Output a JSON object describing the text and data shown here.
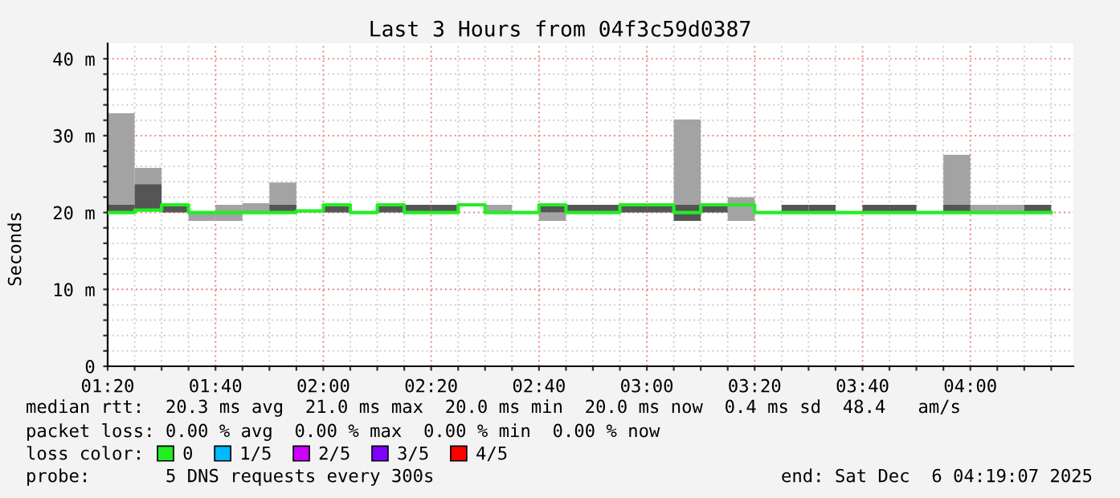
{
  "chart_data": {
    "type": "bar",
    "title": "Last 3 Hours from 04f3c59d0387",
    "ylabel": "Seconds",
    "x": [
      1.375,
      1.4583,
      1.5417,
      1.625,
      1.7083,
      1.7917,
      1.875,
      1.9583,
      2.0417,
      2.125,
      2.2083,
      2.2917,
      2.375,
      2.4583,
      2.5417,
      2.625,
      2.7083,
      2.7917,
      2.875,
      2.9583,
      3.0417,
      3.125,
      3.2083,
      3.2917,
      3.375,
      3.4583,
      3.5417,
      3.625,
      3.7083,
      3.7917,
      3.875,
      3.9583,
      4.0417,
      4.125,
      4.2083
    ],
    "series": [
      {
        "color": "#a3a3a3",
        "base": [
          20.0,
          23.7,
          null,
          18.9,
          18.9,
          20.0,
          20.0,
          null,
          null,
          null,
          null,
          null,
          null,
          null,
          20.0,
          null,
          18.9,
          null,
          null,
          null,
          null,
          18.9,
          null,
          18.9,
          null,
          null,
          null,
          null,
          null,
          null,
          null,
          20.0,
          20.0,
          20.0,
          null
        ],
        "values": [
          12.9,
          2.1,
          null,
          1.1,
          2.1,
          1.2,
          3.9,
          null,
          null,
          null,
          null,
          null,
          null,
          null,
          1.0,
          null,
          1.1,
          null,
          null,
          null,
          null,
          13.2,
          null,
          3.1,
          null,
          null,
          null,
          null,
          null,
          null,
          null,
          7.5,
          1.0,
          1.0,
          null
        ]
      },
      {
        "color": "#555555",
        "base": [
          20.0,
          20.3,
          20.0,
          null,
          null,
          null,
          20.0,
          null,
          20.0,
          null,
          20.0,
          20.0,
          20.0,
          null,
          null,
          null,
          20.0,
          20.0,
          20.0,
          20.0,
          20.0,
          18.9,
          20.0,
          null,
          null,
          20.0,
          20.0,
          null,
          20.0,
          20.0,
          null,
          20.0,
          null,
          null,
          20.0
        ],
        "values": [
          1.0,
          3.4,
          1.0,
          null,
          null,
          null,
          1.0,
          null,
          1.0,
          null,
          1.0,
          1.0,
          1.0,
          null,
          null,
          null,
          1.0,
          1.0,
          1.0,
          1.0,
          1.0,
          2.1,
          1.0,
          null,
          null,
          1.0,
          1.0,
          null,
          1.0,
          1.0,
          null,
          1.0,
          null,
          null,
          1.0
        ]
      },
      {
        "type": "step",
        "name": "0",
        "color": "#22ee22",
        "x": [
          1.3333,
          1.4167,
          1.5,
          1.5833,
          1.6667,
          1.75,
          1.8333,
          1.9167,
          2.0,
          2.0833,
          2.1667,
          2.25,
          2.3333,
          2.4167,
          2.5,
          2.5833,
          2.6667,
          2.75,
          2.8333,
          2.9167,
          3.0,
          3.0833,
          3.1667,
          3.25,
          3.3333,
          3.4167,
          3.5,
          3.5833,
          3.6667,
          3.75,
          3.8333,
          3.9167,
          4.0,
          4.0833,
          4.1667,
          4.25
        ],
        "values": [
          20.0,
          20.3,
          21.0,
          20.0,
          20.0,
          20.0,
          20.0,
          20.2,
          21.0,
          20.0,
          21.0,
          20.0,
          20.0,
          21.0,
          20.0,
          20.0,
          21.0,
          20.0,
          20.0,
          21.0,
          21.0,
          20.0,
          21.0,
          21.0,
          20.0,
          20.0,
          20.0,
          20.0,
          20.0,
          20.0,
          20.0,
          20.0,
          20.0,
          20.0,
          20.0,
          20.0
        ]
      },
      {
        "type": "step",
        "name": "1/5",
        "color": "#00b8ff",
        "values": [
          null,
          null,
          null,
          null,
          null,
          null,
          null,
          null,
          null,
          null,
          null,
          null,
          null,
          null,
          null,
          null,
          null,
          null,
          null,
          null,
          null,
          null,
          null,
          null,
          null,
          null,
          null,
          null,
          null,
          null,
          null,
          null,
          null,
          null,
          null
        ]
      },
      {
        "type": "step",
        "name": "2/5",
        "color": "#cc00ff",
        "values": [
          null,
          null,
          null,
          null,
          null,
          null,
          null,
          null,
          null,
          null,
          null,
          null,
          null,
          null,
          null,
          null,
          null,
          null,
          null,
          null,
          null,
          null,
          null,
          null,
          null,
          null,
          null,
          null,
          null,
          null,
          null,
          null,
          null,
          null,
          null
        ]
      },
      {
        "type": "step",
        "name": "3/5",
        "color": "#7f00ff",
        "values": [
          null,
          null,
          null,
          null,
          null,
          null,
          null,
          null,
          null,
          null,
          null,
          null,
          null,
          null,
          null,
          null,
          null,
          null,
          null,
          null,
          null,
          null,
          null,
          null,
          null,
          null,
          null,
          null,
          null,
          null,
          null,
          null,
          null,
          null,
          null
        ]
      },
      {
        "type": "step",
        "name": "4/5",
        "color": "#ff0000",
        "values": [
          null,
          null,
          null,
          null,
          null,
          null,
          null,
          null,
          null,
          null,
          null,
          null,
          null,
          null,
          null,
          null,
          null,
          null,
          null,
          null,
          null,
          null,
          null,
          null,
          null,
          null,
          null,
          null,
          null,
          null,
          null,
          null,
          null,
          null,
          null
        ]
      }
    ],
    "xlim": [
      1.3333,
      4.3186
    ],
    "xticks": [
      {
        "value": 1.3333,
        "label": "01:20"
      },
      {
        "value": 1.4167,
        "label": null
      },
      {
        "value": 1.5,
        "label": null
      },
      {
        "value": 1.5833,
        "label": null
      },
      {
        "value": 1.6667,
        "label": "01:40"
      },
      {
        "value": 1.75,
        "label": null
      },
      {
        "value": 1.8333,
        "label": null
      },
      {
        "value": 1.9167,
        "label": null
      },
      {
        "value": 2.0,
        "label": "02:00"
      },
      {
        "value": 2.0833,
        "label": null
      },
      {
        "value": 2.1667,
        "label": null
      },
      {
        "value": 2.25,
        "label": null
      },
      {
        "value": 2.3333,
        "label": "02:20"
      },
      {
        "value": 2.4167,
        "label": null
      },
      {
        "value": 2.5,
        "label": null
      },
      {
        "value": 2.5833,
        "label": null
      },
      {
        "value": 2.6667,
        "label": "02:40"
      },
      {
        "value": 2.75,
        "label": null
      },
      {
        "value": 2.8333,
        "label": null
      },
      {
        "value": 2.9167,
        "label": null
      },
      {
        "value": 3.0,
        "label": "03:00"
      },
      {
        "value": 3.0833,
        "label": null
      },
      {
        "value": 3.1667,
        "label": null
      },
      {
        "value": 3.25,
        "label": null
      },
      {
        "value": 3.3333,
        "label": "03:20"
      },
      {
        "value": 3.4167,
        "label": null
      },
      {
        "value": 3.5,
        "label": null
      },
      {
        "value": 3.5833,
        "label": null
      },
      {
        "value": 3.6667,
        "label": "03:40"
      },
      {
        "value": 3.75,
        "label": null
      },
      {
        "value": 3.8333,
        "label": null
      },
      {
        "value": 3.9167,
        "label": null
      },
      {
        "value": 4.0,
        "label": "04:00"
      },
      {
        "value": 4.0833,
        "label": null
      },
      {
        "value": 4.1667,
        "label": null
      },
      {
        "value": 4.25,
        "label": null
      }
    ],
    "ylim": [
      0,
      42
    ],
    "yticks": [
      0,
      {
        "value": 2,
        "label": null
      },
      {
        "value": 4,
        "label": null
      },
      {
        "value": 6,
        "label": null
      },
      {
        "value": 8,
        "label": null
      },
      {
        "value": 10,
        "label": "10 m"
      },
      {
        "value": 12,
        "label": null
      },
      {
        "value": 14,
        "label": null
      },
      {
        "value": 16,
        "label": null
      },
      {
        "value": 18,
        "label": null
      },
      {
        "value": 20,
        "label": "20 m"
      },
      {
        "value": 22,
        "label": null
      },
      {
        "value": 24,
        "label": null
      },
      {
        "value": 26,
        "label": null
      },
      {
        "value": 28,
        "label": null
      },
      {
        "value": 30,
        "label": "30 m"
      },
      {
        "value": 32,
        "label": null
      },
      {
        "value": 34,
        "label": null
      },
      {
        "value": 36,
        "label": null
      },
      {
        "value": 38,
        "label": null
      },
      {
        "value": 40,
        "label": "40 m"
      }
    ],
    "grid": true,
    "legend": "bottom",
    "annotations": [
      "median rtt:  20.3 ms avg  21.0 ms max  20.0 ms min  20.0 ms now  0.4 ms sd  48.4   am/s",
      "packet loss: 0.00 % avg  0.00 % max  0.00 % min  0.00 % now",
      "loss color:",
      "probe:       5 DNS requests every 300s",
      "end: Sat Dec  6 04:19:07 2025"
    ]
  }
}
